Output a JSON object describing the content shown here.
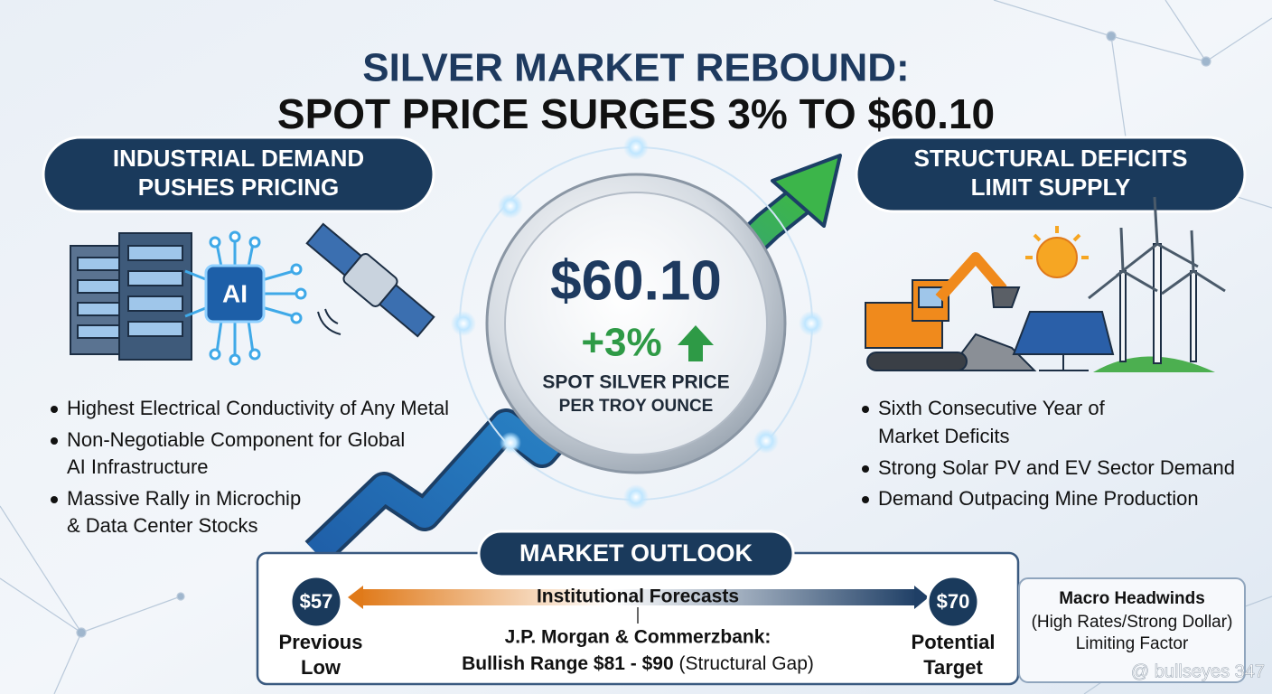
{
  "title": {
    "line1": "SILVER MARKET REBOUND:",
    "line2": "SPOT PRICE SURGES 3% TO $60.10"
  },
  "left_panel": {
    "heading": [
      "INDUSTRIAL DEMAND",
      "PUSHES PRICING"
    ],
    "icon_label": "AI",
    "bullets": [
      [
        "Highest Electrical Conductivity of Any Metal"
      ],
      [
        "Non-Negotiable Component for Global",
        "AI Infrastructure"
      ],
      [
        "Massive Rally in Microchip",
        "& Data Center Stocks"
      ]
    ]
  },
  "center": {
    "price": "$60.10",
    "change": "+3%",
    "caption": [
      "SPOT SILVER PRICE",
      "PER TROY OUNCE"
    ]
  },
  "right_panel": {
    "heading": [
      "STRUCTURAL DEFICITS",
      "LIMIT SUPPLY"
    ],
    "bullets": [
      [
        "Sixth Consecutive Year of",
        "Market Deficits"
      ],
      [
        "Strong Solar PV and EV Sector Demand"
      ],
      [
        "Demand Outpacing Mine Production"
      ]
    ]
  },
  "outlook": {
    "heading": "MARKET OUTLOOK",
    "bar_label": "Institutional Forecasts",
    "low": {
      "value": "$57",
      "label": [
        "Previous",
        "Low"
      ]
    },
    "target": {
      "value": "$70",
      "label": [
        "Potential",
        "Target"
      ]
    },
    "note": [
      "J.P. Morgan & Commerzbank:",
      "Bullish Range $81 - $90",
      "(Structural Gap)"
    ]
  },
  "side_note": [
    "Macro Headwinds",
    "(High Rates/Strong Dollar)",
    "Limiting Factor"
  ],
  "watermark": "@ bullseyes 347"
}
